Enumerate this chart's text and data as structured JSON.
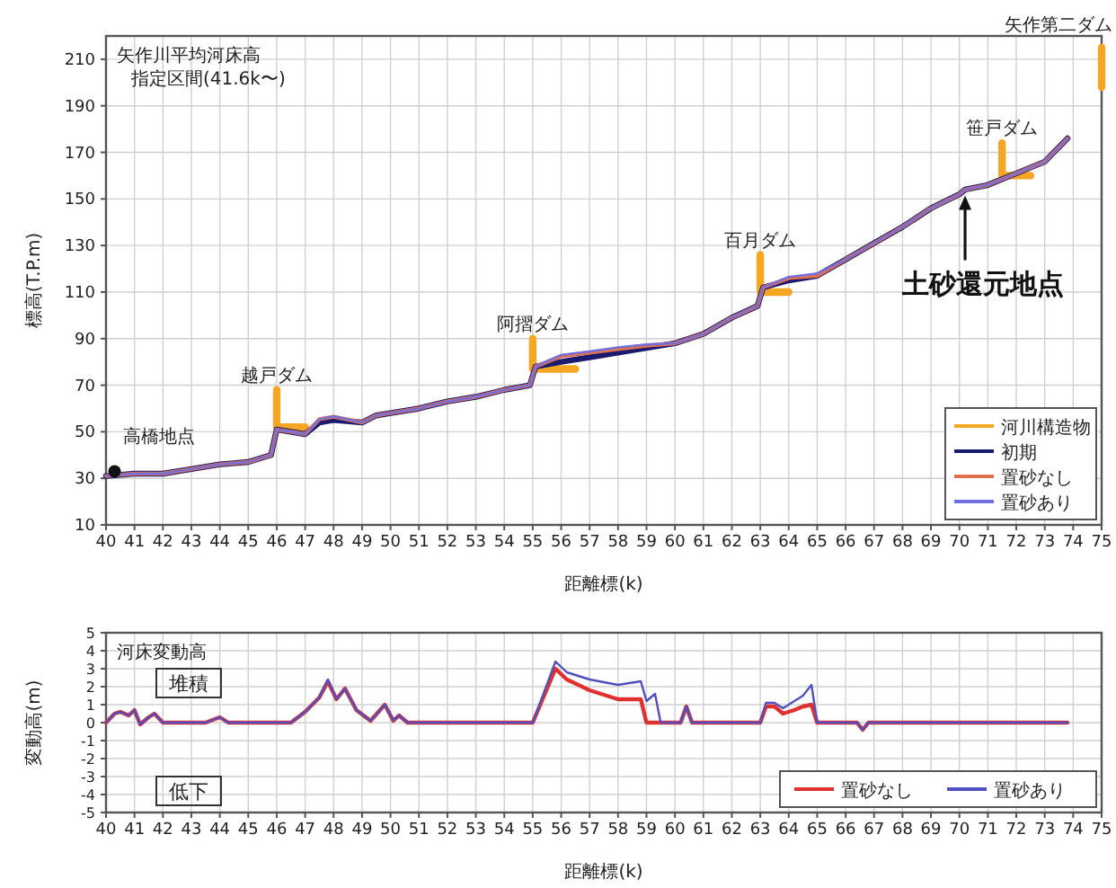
{
  "chart_data": [
    {
      "type": "line",
      "title": "矢作川平均河床高",
      "subtitle": "指定区間(41.6k〜)",
      "xlabel": "距離標(k)",
      "ylabel": "標高(T.P.m)",
      "xlim": [
        40,
        75
      ],
      "xticks": [
        40,
        41,
        42,
        43,
        44,
        45,
        46,
        47,
        48,
        49,
        50,
        51,
        52,
        53,
        54,
        55,
        56,
        57,
        58,
        59,
        60,
        61,
        62,
        63,
        64,
        65,
        66,
        67,
        68,
        69,
        70,
        71,
        72,
        73,
        74,
        75
      ],
      "ylim": [
        10,
        220
      ],
      "yticks": [
        10,
        30,
        50,
        70,
        90,
        110,
        130,
        150,
        170,
        190,
        210
      ],
      "grid": true,
      "legend": "bottom right",
      "x": [
        40,
        41,
        42,
        43,
        44,
        45,
        45.8,
        46,
        47,
        47.5,
        48,
        49,
        49.5,
        50,
        51,
        52,
        53,
        54,
        54.9,
        55.1,
        56,
        57,
        58,
        59,
        60,
        61,
        62,
        62.9,
        63.1,
        64,
        65,
        66,
        67,
        68,
        69,
        70,
        70.2,
        71,
        72,
        73,
        73.8
      ],
      "series": [
        {
          "name": "河川構造物",
          "color": "#f5a623",
          "x": [
            46,
            46,
            47,
            null,
            55,
            55,
            56.5,
            null,
            63,
            63,
            64,
            null,
            71.5,
            71.5,
            72.5,
            null,
            75,
            75
          ],
          "values": [
            68,
            52,
            52,
            null,
            90,
            77,
            77,
            null,
            126,
            110,
            110,
            null,
            174,
            160,
            160,
            null,
            215,
            198
          ]
        },
        {
          "name": "初期",
          "color": "#1a1a6e",
          "values": [
            31,
            32,
            32,
            34,
            36,
            37,
            40,
            51,
            49,
            54,
            55,
            54,
            57,
            58,
            60,
            63,
            65,
            68,
            70,
            78,
            80,
            82,
            84,
            86,
            88,
            92,
            99,
            104,
            112,
            115,
            117,
            124,
            131,
            138,
            146,
            152,
            154,
            156,
            161,
            166,
            176
          ]
        },
        {
          "name": "置砂なし",
          "color": "#e07050",
          "values": [
            31,
            32,
            32,
            34,
            36,
            37,
            40,
            51,
            49,
            55.4,
            56.5,
            54,
            57,
            58,
            60,
            63,
            65,
            68,
            70,
            78,
            82.5,
            84,
            85.5,
            87,
            88,
            92,
            99,
            104,
            112,
            116,
            117,
            124,
            131,
            138,
            146,
            152,
            154,
            156,
            161,
            166,
            176
          ]
        },
        {
          "name": "置砂あり",
          "color": "#7070e0",
          "values": [
            31,
            32,
            32,
            34,
            36,
            37,
            40,
            51,
            49,
            55.4,
            56.6,
            54,
            57,
            58,
            60,
            63,
            65,
            68,
            70,
            78,
            83,
            84.5,
            86.3,
            87.5,
            88,
            92,
            99,
            104,
            112,
            116.5,
            118,
            124,
            131,
            138,
            146,
            152,
            154,
            156,
            161,
            166,
            176
          ]
        }
      ],
      "annotations": [
        {
          "text": "高橋地点",
          "x": 40.3,
          "y": 33
        },
        {
          "text": "越戸ダム",
          "x": 46,
          "y": 68
        },
        {
          "text": "阿摺ダム",
          "x": 55,
          "y": 90
        },
        {
          "text": "百月ダム",
          "x": 63,
          "y": 126
        },
        {
          "text": "笹戸ダム",
          "x": 71.5,
          "y": 174
        },
        {
          "text": "矢作第二ダム",
          "x": 75,
          "y": 215
        },
        {
          "text": "土砂還元地点",
          "x": 70.2,
          "y": 153
        }
      ]
    },
    {
      "type": "line",
      "title": "河床変動高",
      "xlabel": "距離標(k)",
      "ylabel": "変動高(m)",
      "xlim": [
        40,
        75
      ],
      "xticks": [
        40,
        41,
        42,
        43,
        44,
        45,
        46,
        47,
        48,
        49,
        50,
        51,
        52,
        53,
        54,
        55,
        56,
        57,
        58,
        59,
        60,
        61,
        62,
        63,
        64,
        65,
        66,
        67,
        68,
        69,
        70,
        71,
        72,
        73,
        74,
        75
      ],
      "ylim": [
        -5,
        5
      ],
      "yticks": [
        -5,
        -4,
        -3,
        -2,
        -1,
        0,
        1,
        2,
        3,
        4,
        5
      ],
      "grid": true,
      "legend": "bottom right",
      "x": [
        40,
        40.3,
        40.5,
        40.8,
        41,
        41.2,
        41.5,
        41.7,
        42,
        43.5,
        44,
        44.3,
        46.5,
        47,
        47.5,
        47.8,
        48.1,
        48.4,
        48.8,
        49.3,
        49.8,
        50.1,
        50.3,
        50.6,
        55,
        55.4,
        55.8,
        56.2,
        57,
        58,
        58.8,
        59,
        59.3,
        59.5,
        60.2,
        60.4,
        60.6,
        63,
        63.2,
        63.5,
        63.8,
        64.2,
        64.5,
        64.8,
        65,
        66.4,
        66.6,
        66.8,
        73.8
      ],
      "series": [
        {
          "name": "置砂なし",
          "color": "#e03030",
          "values": [
            0,
            0.5,
            0.6,
            0.4,
            0.7,
            -0.1,
            0.3,
            0.5,
            0,
            0,
            0.3,
            0,
            0,
            0.6,
            1.4,
            2.3,
            1.3,
            1.9,
            0.7,
            0.1,
            1.0,
            0.1,
            0.4,
            0,
            0,
            1.5,
            3.0,
            2.4,
            1.8,
            1.3,
            1.3,
            0,
            0,
            0,
            0,
            0.9,
            0,
            0,
            0.9,
            0.9,
            0.5,
            0.7,
            0.9,
            1.0,
            0,
            0,
            -0.4,
            0,
            0
          ]
        },
        {
          "name": "置砂あり",
          "color": "#5050c0",
          "values": [
            0,
            0.5,
            0.6,
            0.4,
            0.7,
            -0.1,
            0.3,
            0.5,
            0,
            0,
            0.3,
            0,
            0,
            0.6,
            1.4,
            2.4,
            1.3,
            1.9,
            0.7,
            0.1,
            1.0,
            0.1,
            0.4,
            0,
            0,
            1.7,
            3.4,
            2.8,
            2.4,
            2.1,
            2.3,
            1.2,
            1.6,
            0,
            0,
            0.9,
            0,
            0,
            1.1,
            1.1,
            0.8,
            1.2,
            1.5,
            2.1,
            0,
            0,
            -0.4,
            0,
            0
          ]
        }
      ],
      "annotations": [
        "堆積",
        "低下"
      ]
    }
  ]
}
